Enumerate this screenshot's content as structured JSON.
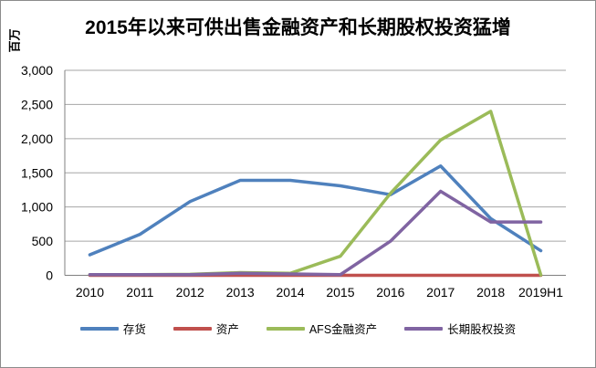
{
  "title": "2015年以来可供出售金融资产和长期股权投资猛增",
  "axis": {
    "unit_label": "百万",
    "y_tick_labels": [
      "0",
      "500",
      "1,000",
      "1,500",
      "2,000",
      "2,500",
      "3,000"
    ],
    "x_tick_labels": [
      "2010",
      "2011",
      "2012",
      "2013",
      "2014",
      "2015",
      "2016",
      "2017",
      "2018",
      "2019H1"
    ]
  },
  "chart_data": {
    "type": "line",
    "title": "2015年以来可供出售金融资产和长期股权投资猛增",
    "xlabel": "",
    "ylabel": "百万",
    "categories": [
      "2010",
      "2011",
      "2012",
      "2013",
      "2014",
      "2015",
      "2016",
      "2017",
      "2018",
      "2019H1"
    ],
    "series": [
      {
        "name": "存货",
        "color": "#4F81BD",
        "values": [
          300,
          600,
          1080,
          1390,
          1390,
          1310,
          1180,
          1600,
          830,
          360
        ]
      },
      {
        "name": "资产",
        "color": "#C0504D",
        "values": [
          0,
          0,
          0,
          0,
          0,
          0,
          0,
          0,
          0,
          0
        ]
      },
      {
        "name": "AFS金融资产",
        "color": "#9BBB59",
        "values": [
          10,
          10,
          15,
          40,
          30,
          280,
          1200,
          1980,
          2400,
          5
        ]
      },
      {
        "name": "长期股权投资",
        "color": "#8064A2",
        "values": [
          10,
          10,
          10,
          30,
          20,
          10,
          500,
          1230,
          780,
          780
        ]
      }
    ],
    "ylim": [
      0,
      3000
    ],
    "ytick_step": 500,
    "grid": true,
    "legend_position": "bottom"
  },
  "colors": {
    "gridline": "#A6A6A6",
    "axis": "#808080",
    "text": "#000000",
    "background": "#FFFFFF",
    "frame_border": "#8C8C8C"
  }
}
